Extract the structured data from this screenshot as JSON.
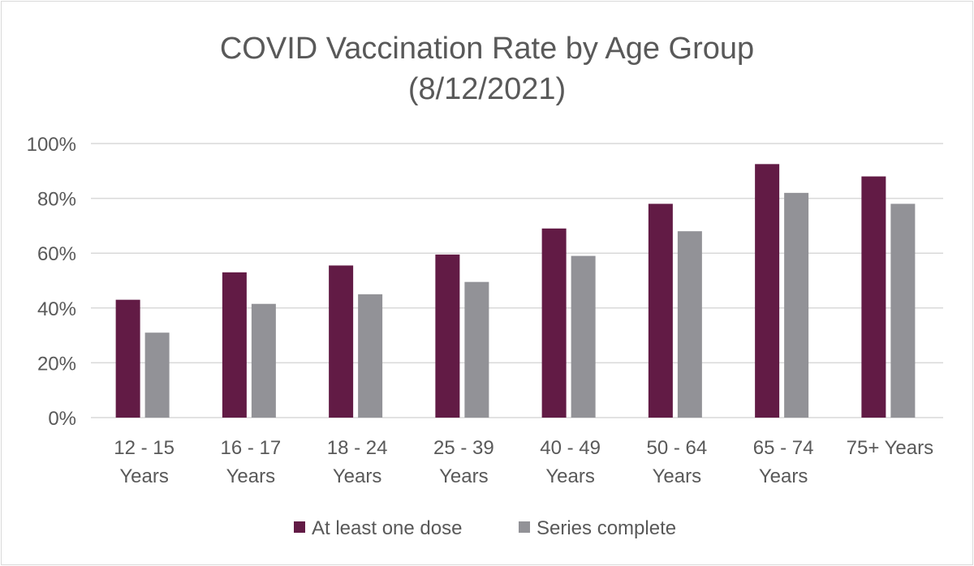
{
  "chart_data": {
    "type": "bar",
    "title_lines": [
      "COVID Vaccination Rate by Age Group",
      "(8/12/2021)"
    ],
    "categories": [
      [
        "12 - 15",
        "Years"
      ],
      [
        "16 - 17",
        "Years"
      ],
      [
        "18 - 24",
        "Years"
      ],
      [
        "25 - 39",
        "Years"
      ],
      [
        "40 - 49",
        "Years"
      ],
      [
        "50 - 64",
        "Years"
      ],
      [
        "65 - 74",
        "Years"
      ],
      [
        "75+ Years"
      ]
    ],
    "series": [
      {
        "name": "At least one dose",
        "color": "#621b45",
        "values": [
          43,
          53,
          55.5,
          59.5,
          69,
          78,
          92.5,
          88
        ]
      },
      {
        "name": "Series complete",
        "color": "#929297",
        "values": [
          31,
          41.5,
          45,
          49.5,
          59,
          68,
          82,
          78
        ]
      }
    ],
    "ylim": [
      0,
      100
    ],
    "yticks": [
      0,
      20,
      40,
      60,
      80,
      100
    ],
    "ytick_labels": [
      "0%",
      "20%",
      "40%",
      "60%",
      "80%",
      "100%"
    ],
    "grid": true,
    "legend_position": "bottom",
    "gridline_color": "#d9d9d9"
  }
}
